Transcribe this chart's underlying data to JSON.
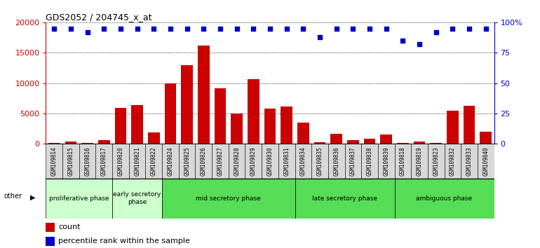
{
  "title": "GDS2052 / 204745_x_at",
  "samples": [
    "GSM109814",
    "GSM109815",
    "GSM109816",
    "GSM109817",
    "GSM109820",
    "GSM109821",
    "GSM109822",
    "GSM109824",
    "GSM109825",
    "GSM109826",
    "GSM109827",
    "GSM109828",
    "GSM109829",
    "GSM109830",
    "GSM109831",
    "GSM109834",
    "GSM109835",
    "GSM109836",
    "GSM109837",
    "GSM109838",
    "GSM109839",
    "GSM109818",
    "GSM109819",
    "GSM109823",
    "GSM109832",
    "GSM109833",
    "GSM109840"
  ],
  "counts": [
    200,
    350,
    150,
    600,
    5900,
    6400,
    1900,
    10000,
    12900,
    16200,
    9200,
    5000,
    10700,
    5800,
    6200,
    3500,
    250,
    1700,
    600,
    800,
    1500,
    200,
    400,
    200,
    5500,
    6300,
    2000
  ],
  "percentile": [
    95,
    95,
    92,
    95,
    95,
    95,
    95,
    95,
    95,
    95,
    95,
    95,
    95,
    95,
    95,
    95,
    88,
    95,
    95,
    95,
    95,
    85,
    82,
    92,
    95,
    95,
    95
  ],
  "phases": [
    {
      "label": "proliferative phase",
      "start": 0,
      "end": 4,
      "color": "#ccffcc"
    },
    {
      "label": "early secretory\nphase",
      "start": 4,
      "end": 7,
      "color": "#ccffcc"
    },
    {
      "label": "mid secretory phase",
      "start": 7,
      "end": 15,
      "color": "#55dd55"
    },
    {
      "label": "late secretory phase",
      "start": 15,
      "end": 21,
      "color": "#55dd55"
    },
    {
      "label": "ambiguous phase",
      "start": 21,
      "end": 27,
      "color": "#55dd55"
    }
  ],
  "bar_color": "#cc0000",
  "dot_color": "#0000cc",
  "ylim_left": [
    0,
    20000
  ],
  "ylim_right": [
    0,
    100
  ],
  "yticks_left": [
    0,
    5000,
    10000,
    15000,
    20000
  ],
  "yticks_right": [
    0,
    25,
    50,
    75,
    100
  ],
  "background_color": "#ffffff"
}
